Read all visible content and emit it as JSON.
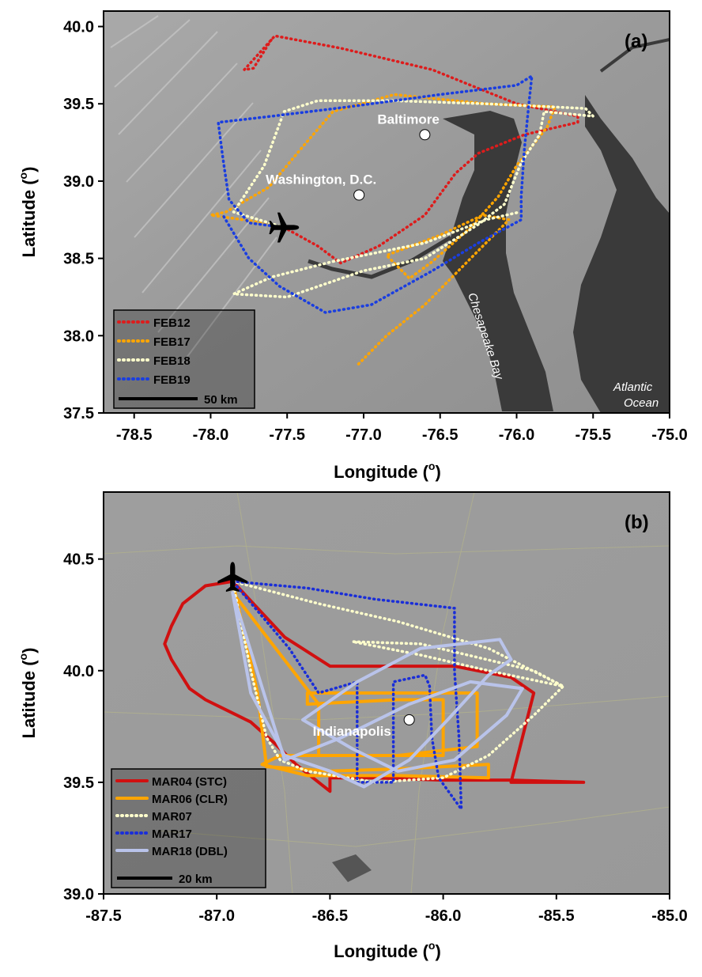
{
  "panels": [
    {
      "label": "(a)",
      "xlim": [
        -78.7,
        -75.0
      ],
      "ylim": [
        37.5,
        40.1
      ],
      "xticks": [
        -78.5,
        -78.0,
        -77.5,
        -77.0,
        -76.5,
        -76.0,
        -75.5,
        -75.0
      ],
      "yticks": [
        37.5,
        38.0,
        38.5,
        39.0,
        39.5,
        40.0
      ],
      "xtick_labels": [
        "-78.5",
        "-78.0",
        "-77.5",
        "-77.0",
        "-76.5",
        "-76.0",
        "-75.5",
        "-75.0"
      ],
      "ytick_labels": [
        "37.5",
        "38.0",
        "38.5",
        "39.0",
        "39.5",
        "40.0"
      ],
      "xlabel": "Longitude (",
      "ylabel": "Latitude (",
      "degree_symbol": "o",
      "closing_paren": ")",
      "cities": [
        {
          "name": "Baltimore",
          "lon": -76.6,
          "lat": 39.3
        },
        {
          "name": "Washington, D.C.",
          "lon": -77.03,
          "lat": 38.91
        }
      ],
      "water_labels": [
        {
          "text": "Chesapeake Bay"
        },
        {
          "text": "Atlantic"
        },
        {
          "text": "Ocean"
        }
      ],
      "airport": {
        "lon": -77.52,
        "lat": 38.7
      },
      "scale_bar": "50 km",
      "tracks": [
        {
          "name": "FEB12",
          "color": "#dd1c1c",
          "style": "dotted",
          "points": [
            [
              -77.52,
              38.7
            ],
            [
              -77.3,
              38.58
            ],
            [
              -77.15,
              38.47
            ],
            [
              -76.9,
              38.58
            ],
            [
              -76.6,
              38.78
            ],
            [
              -76.4,
              39.05
            ],
            [
              -76.25,
              39.18
            ],
            [
              -75.95,
              39.3
            ],
            [
              -75.6,
              39.38
            ],
            [
              -75.6,
              39.42
            ],
            [
              -76.0,
              39.5
            ],
            [
              -76.55,
              39.72
            ],
            [
              -77.15,
              39.86
            ],
            [
              -77.58,
              39.94
            ],
            [
              -77.78,
              39.72
            ],
            [
              -77.72,
              39.73
            ],
            [
              -77.6,
              39.92
            ]
          ]
        },
        {
          "name": "FEB17",
          "color": "#ffa500",
          "style": "dotted",
          "points": [
            [
              -77.52,
              38.7
            ],
            [
              -77.72,
              38.74
            ],
            [
              -78.0,
              38.78
            ],
            [
              -77.9,
              38.8
            ],
            [
              -77.62,
              38.96
            ],
            [
              -77.4,
              39.22
            ],
            [
              -77.2,
              39.45
            ],
            [
              -76.8,
              39.56
            ],
            [
              -76.2,
              39.5
            ],
            [
              -75.75,
              39.48
            ],
            [
              -75.8,
              39.35
            ],
            [
              -76.0,
              39.1
            ],
            [
              -76.12,
              38.9
            ],
            [
              -76.3,
              38.7
            ],
            [
              -76.55,
              38.48
            ],
            [
              -76.7,
              38.37
            ],
            [
              -76.85,
              38.52
            ],
            [
              -76.5,
              38.65
            ],
            [
              -76.22,
              38.78
            ],
            [
              -76.05,
              38.75
            ],
            [
              -76.3,
              38.5
            ],
            [
              -76.6,
              38.2
            ],
            [
              -76.85,
              38.0
            ],
            [
              -77.05,
              37.8
            ]
          ]
        },
        {
          "name": "FEB18",
          "color": "#ffffcc",
          "style": "dotted",
          "points": [
            [
              -77.52,
              38.7
            ],
            [
              -77.85,
              38.8
            ],
            [
              -77.65,
              39.1
            ],
            [
              -77.52,
              39.45
            ],
            [
              -77.3,
              39.52
            ],
            [
              -76.8,
              39.52
            ],
            [
              -76.2,
              39.5
            ],
            [
              -75.55,
              39.47
            ],
            [
              -75.5,
              39.42
            ],
            [
              -75.82,
              39.45
            ],
            [
              -75.85,
              39.3
            ],
            [
              -75.97,
              39.12
            ],
            [
              -76.08,
              38.85
            ],
            [
              -76.25,
              38.72
            ],
            [
              -76.6,
              38.5
            ],
            [
              -77.0,
              38.42
            ],
            [
              -77.5,
              38.25
            ],
            [
              -77.85,
              38.27
            ],
            [
              -77.6,
              38.38
            ],
            [
              -77.2,
              38.48
            ],
            [
              -76.6,
              38.6
            ],
            [
              -76.2,
              38.75
            ],
            [
              -75.98,
              38.8
            ]
          ]
        },
        {
          "name": "FEB19",
          "color": "#1a3ee0",
          "style": "dotted",
          "points": [
            [
              -77.52,
              38.7
            ],
            [
              -77.75,
              38.73
            ],
            [
              -77.88,
              38.88
            ],
            [
              -77.92,
              39.15
            ],
            [
              -77.95,
              39.38
            ],
            [
              -77.6,
              39.42
            ],
            [
              -77.1,
              39.48
            ],
            [
              -76.5,
              39.56
            ],
            [
              -76.0,
              39.62
            ],
            [
              -75.9,
              39.68
            ],
            [
              -75.92,
              39.5
            ],
            [
              -75.95,
              39.2
            ],
            [
              -75.97,
              38.9
            ],
            [
              -75.97,
              38.75
            ],
            [
              -76.25,
              38.6
            ],
            [
              -76.55,
              38.42
            ],
            [
              -76.95,
              38.2
            ],
            [
              -77.25,
              38.15
            ],
            [
              -77.55,
              38.32
            ],
            [
              -77.75,
              38.5
            ],
            [
              -77.92,
              38.78
            ]
          ]
        }
      ],
      "legend": [
        "FEB12",
        "FEB17",
        "FEB18",
        "FEB19"
      ]
    },
    {
      "label": "(b)",
      "xlim": [
        -87.5,
        -85.0
      ],
      "ylim": [
        39.0,
        40.8
      ],
      "xticks": [
        -87.5,
        -87.0,
        -86.5,
        -86.0,
        -85.5,
        -85.0
      ],
      "yticks": [
        39.0,
        39.5,
        40.0,
        40.5
      ],
      "xtick_labels": [
        "-87.5",
        "-87.0",
        "-86.5",
        "-86.0",
        "-85.5",
        "-85.0"
      ],
      "ytick_labels": [
        "39.0",
        "39.5",
        "40.0",
        "40.5"
      ],
      "xlabel": "Longitude (",
      "ylabel": "Latitude (",
      "degree_symbol": "o",
      "closing_paren": ")",
      "cities": [
        {
          "name": "Indianapolis",
          "lon": -86.15,
          "lat": 39.78
        }
      ],
      "airport": {
        "lon": -86.93,
        "lat": 40.42
      },
      "scale_bar": "20 km",
      "tracks": [
        {
          "name": "MAR04 (STC)",
          "color": "#d01010",
          "style": "solid",
          "points": [
            [
              -86.93,
              40.4
            ],
            [
              -87.05,
              40.38
            ],
            [
              -87.15,
              40.3
            ],
            [
              -87.2,
              40.2
            ],
            [
              -87.23,
              40.12
            ],
            [
              -87.2,
              40.05
            ],
            [
              -87.12,
              39.92
            ],
            [
              -87.05,
              39.87
            ],
            [
              -86.95,
              39.82
            ],
            [
              -86.85,
              39.77
            ],
            [
              -86.75,
              39.68
            ],
            [
              -86.65,
              39.58
            ],
            [
              -86.55,
              39.5
            ],
            [
              -86.5,
              39.46
            ],
            [
              -86.5,
              39.52
            ],
            [
              -86.3,
              39.52
            ],
            [
              -86.0,
              39.51
            ],
            [
              -85.7,
              39.51
            ],
            [
              -85.38,
              39.5
            ],
            [
              -85.7,
              39.5
            ],
            [
              -85.65,
              39.7
            ],
            [
              -85.6,
              39.9
            ],
            [
              -85.7,
              39.97
            ],
            [
              -85.95,
              40.02
            ],
            [
              -86.25,
              40.02
            ],
            [
              -86.5,
              40.02
            ],
            [
              -86.7,
              40.15
            ],
            [
              -86.93,
              40.4
            ]
          ]
        },
        {
          "name": "MAR06 (CLR)",
          "color": "#ffa500",
          "style": "solid",
          "points": [
            [
              -86.93,
              40.4
            ],
            [
              -86.82,
              39.9
            ],
            [
              -86.78,
              39.57
            ],
            [
              -86.5,
              39.55
            ],
            [
              -86.2,
              39.56
            ],
            [
              -85.8,
              39.58
            ],
            [
              -85.8,
              39.52
            ],
            [
              -86.2,
              39.53
            ],
            [
              -86.6,
              39.53
            ],
            [
              -86.8,
              39.58
            ],
            [
              -86.72,
              39.62
            ],
            [
              -86.2,
              39.62
            ],
            [
              -85.85,
              39.66
            ],
            [
              -85.85,
              39.9
            ],
            [
              -86.2,
              39.9
            ],
            [
              -86.6,
              39.9
            ],
            [
              -86.6,
              39.85
            ],
            [
              -86.2,
              39.87
            ],
            [
              -86.0,
              39.87
            ],
            [
              -86.0,
              39.62
            ],
            [
              -86.55,
              39.62
            ],
            [
              -86.55,
              39.85
            ],
            [
              -86.93,
              40.35
            ]
          ]
        },
        {
          "name": "MAR07",
          "color": "#ffffcc",
          "style": "dotted",
          "points": [
            [
              -86.93,
              40.4
            ],
            [
              -86.85,
              40.0
            ],
            [
              -86.78,
              39.7
            ],
            [
              -86.72,
              39.6
            ],
            [
              -86.6,
              39.55
            ],
            [
              -86.3,
              39.5
            ],
            [
              -86.0,
              39.52
            ],
            [
              -85.8,
              39.62
            ],
            [
              -85.6,
              39.8
            ],
            [
              -85.47,
              39.93
            ],
            [
              -85.8,
              40.0
            ],
            [
              -86.1,
              40.07
            ],
            [
              -86.4,
              40.13
            ],
            [
              -86.1,
              40.12
            ],
            [
              -85.6,
              40.0
            ],
            [
              -85.47,
              39.93
            ],
            [
              -85.8,
              40.1
            ],
            [
              -86.2,
              40.22
            ],
            [
              -86.55,
              40.3
            ],
            [
              -86.93,
              40.4
            ]
          ]
        },
        {
          "name": "MAR17",
          "color": "#1a2ed8",
          "style": "dotted",
          "points": [
            [
              -86.93,
              40.4
            ],
            [
              -86.6,
              40.37
            ],
            [
              -86.3,
              40.32
            ],
            [
              -85.95,
              40.28
            ],
            [
              -85.95,
              40.0
            ],
            [
              -85.93,
              39.7
            ],
            [
              -85.92,
              39.38
            ],
            [
              -86.02,
              39.52
            ],
            [
              -86.05,
              39.7
            ],
            [
              -86.06,
              39.93
            ],
            [
              -86.08,
              39.98
            ],
            [
              -86.22,
              39.95
            ],
            [
              -86.22,
              39.7
            ],
            [
              -86.22,
              39.5
            ],
            [
              -86.38,
              39.5
            ],
            [
              -86.38,
              39.8
            ],
            [
              -86.38,
              39.95
            ],
            [
              -86.55,
              39.9
            ],
            [
              -86.68,
              40.1
            ],
            [
              -86.93,
              40.4
            ]
          ]
        },
        {
          "name": "MAR18 (DBL)",
          "color": "#b9c3ea",
          "style": "solid",
          "points": [
            [
              -86.93,
              40.35
            ],
            [
              -86.85,
              39.9
            ],
            [
              -86.7,
              39.62
            ],
            [
              -86.5,
              39.55
            ],
            [
              -86.35,
              39.48
            ],
            [
              -86.15,
              39.6
            ],
            [
              -85.98,
              39.78
            ],
            [
              -85.8,
              39.98
            ],
            [
              -85.7,
              40.05
            ],
            [
              -85.75,
              40.14
            ],
            [
              -86.1,
              40.1
            ],
            [
              -86.38,
              39.95
            ],
            [
              -86.62,
              39.78
            ],
            [
              -86.4,
              39.65
            ],
            [
              -86.2,
              39.55
            ],
            [
              -85.95,
              39.6
            ],
            [
              -85.72,
              39.8
            ],
            [
              -85.65,
              39.92
            ],
            [
              -85.88,
              39.95
            ],
            [
              -86.15,
              39.85
            ],
            [
              -86.45,
              39.7
            ],
            [
              -86.7,
              39.6
            ],
            [
              -86.93,
              40.35
            ]
          ]
        }
      ],
      "legend": [
        "MAR04 (STC)",
        "MAR06 (CLR)",
        "MAR07",
        "MAR17",
        "MAR18 (DBL)"
      ]
    }
  ]
}
